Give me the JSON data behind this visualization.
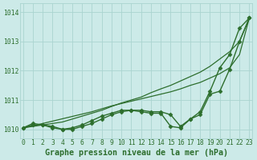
{
  "xlabel": "Graphe pression niveau de la mer (hPa)",
  "x": [
    0,
    1,
    2,
    3,
    4,
    5,
    6,
    7,
    8,
    9,
    10,
    11,
    12,
    13,
    14,
    15,
    16,
    17,
    18,
    19,
    20,
    21,
    22,
    23
  ],
  "smooth1": [
    1010.05,
    1010.1,
    1010.15,
    1010.2,
    1010.25,
    1010.35,
    1010.45,
    1010.55,
    1010.65,
    1010.78,
    1010.9,
    1011.0,
    1011.1,
    1011.25,
    1011.38,
    1011.5,
    1011.65,
    1011.8,
    1011.95,
    1012.15,
    1012.4,
    1012.65,
    1013.0,
    1013.8
  ],
  "smooth2": [
    1010.05,
    1010.12,
    1010.2,
    1010.28,
    1010.36,
    1010.44,
    1010.52,
    1010.6,
    1010.7,
    1010.8,
    1010.88,
    1010.96,
    1011.04,
    1011.12,
    1011.2,
    1011.28,
    1011.38,
    1011.5,
    1011.6,
    1011.75,
    1011.9,
    1012.1,
    1012.55,
    1013.8
  ],
  "line_marker1": [
    1010.05,
    1010.2,
    1010.15,
    1010.1,
    1010.0,
    1010.05,
    1010.15,
    1010.3,
    1010.45,
    1010.55,
    1010.65,
    1010.65,
    1010.65,
    1010.6,
    1010.6,
    1010.5,
    1010.1,
    1010.35,
    1010.6,
    1011.3,
    1012.1,
    1012.55,
    1013.45,
    1013.8
  ],
  "line_marker2": [
    1010.05,
    1010.15,
    1010.15,
    1010.05,
    1010.0,
    1010.0,
    1010.1,
    1010.2,
    1010.35,
    1010.5,
    1010.6,
    1010.65,
    1010.6,
    1010.55,
    1010.55,
    1010.1,
    1010.05,
    1010.35,
    1010.5,
    1011.2,
    1011.3,
    1012.05,
    1013.0,
    1013.8
  ],
  "ylim": [
    1009.7,
    1014.3
  ],
  "yticks": [
    1010,
    1011,
    1012,
    1013,
    1014
  ],
  "bg_color": "#cceae8",
  "grid_color": "#aad4d0",
  "line_color": "#2d6e2d",
  "marker": "D",
  "marker_size": 2.5,
  "linewidth_smooth": 0.9,
  "linewidth_marker": 1.0,
  "xlabel_fontsize": 7.2,
  "tick_fontsize": 5.8
}
